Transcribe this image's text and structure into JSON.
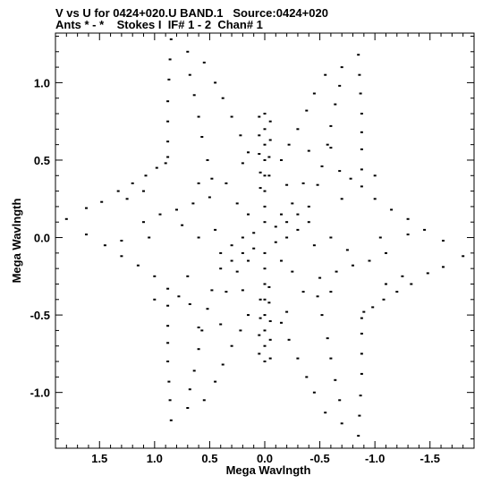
{
  "chart_data": {
    "type": "scatter",
    "title": "V vs U for 0424+020.U BAND.1   Source:0424+020",
    "subtitle": "Ants * - *    Stokes I  IF# 1 - 2  Chan# 1",
    "xlabel": "Mega Wavlngth",
    "ylabel": "Mega Wavlngth",
    "xlim": [
      1.9,
      -1.9
    ],
    "ylim": [
      -1.36,
      1.32
    ],
    "x_reversed": true,
    "x_ticks": [
      1.5,
      1.0,
      0.5,
      0.0,
      -0.5,
      -1.0,
      -1.5
    ],
    "x_tick_labels": [
      "1.5",
      "1.0",
      "0.5",
      "0.0",
      "-0.5",
      "-1.0",
      "-1.5"
    ],
    "y_ticks": [
      1.0,
      0.5,
      0.0,
      -0.5,
      -1.0
    ],
    "y_tick_labels": [
      "1.0",
      "0.5",
      "0.0",
      "-0.5",
      "-1.0"
    ],
    "grid": false,
    "series": [
      {
        "values": [
          [
            1.8,
            0.12
          ],
          [
            1.62,
            0.19
          ],
          [
            1.48,
            0.23
          ],
          [
            1.33,
            0.3
          ],
          [
            1.2,
            0.35
          ],
          [
            1.08,
            0.4
          ],
          [
            0.98,
            0.45
          ],
          [
            0.9,
            0.48
          ],
          [
            -1.8,
            -0.12
          ],
          [
            -1.62,
            -0.19
          ],
          [
            -1.48,
            -0.23
          ],
          [
            -1.33,
            -0.3
          ],
          [
            -1.2,
            -0.35
          ],
          [
            -1.08,
            -0.4
          ],
          [
            -0.98,
            -0.45
          ],
          [
            -0.9,
            -0.48
          ],
          [
            1.62,
            0.02
          ],
          [
            1.45,
            -0.05
          ],
          [
            1.3,
            -0.12
          ],
          [
            1.15,
            -0.18
          ],
          [
            1.0,
            -0.25
          ],
          [
            0.88,
            -0.33
          ],
          [
            0.78,
            -0.38
          ],
          [
            0.68,
            -0.43
          ],
          [
            -1.62,
            -0.02
          ],
          [
            -1.45,
            0.05
          ],
          [
            -1.3,
            0.12
          ],
          [
            -1.15,
            0.18
          ],
          [
            -1.0,
            0.25
          ],
          [
            -0.88,
            0.33
          ],
          [
            -0.78,
            0.38
          ],
          [
            -0.68,
            0.43
          ],
          [
            1.1,
            0.1
          ],
          [
            0.95,
            0.15
          ],
          [
            0.8,
            0.18
          ],
          [
            0.65,
            0.22
          ],
          [
            0.5,
            0.26
          ],
          [
            -1.1,
            -0.1
          ],
          [
            -0.95,
            -0.15
          ],
          [
            -0.8,
            -0.18
          ],
          [
            -0.65,
            -0.22
          ],
          [
            -0.5,
            -0.26
          ],
          [
            0.85,
            1.28
          ],
          [
            0.86,
            1.15
          ],
          [
            0.87,
            1.02
          ],
          [
            0.88,
            0.88
          ],
          [
            0.88,
            0.75
          ],
          [
            0.88,
            0.62
          ],
          [
            0.88,
            0.52
          ],
          [
            -0.85,
            -1.28
          ],
          [
            -0.86,
            -1.15
          ],
          [
            -0.87,
            -1.02
          ],
          [
            -0.88,
            -0.88
          ],
          [
            -0.88,
            -0.75
          ],
          [
            -0.88,
            -0.62
          ],
          [
            -0.88,
            -0.52
          ],
          [
            0.7,
            1.2
          ],
          [
            0.68,
            1.05
          ],
          [
            0.64,
            0.92
          ],
          [
            0.6,
            0.78
          ],
          [
            0.57,
            0.65
          ],
          [
            0.52,
            0.5
          ],
          [
            0.48,
            0.38
          ],
          [
            -0.7,
            -1.2
          ],
          [
            -0.68,
            -1.05
          ],
          [
            -0.64,
            -0.92
          ],
          [
            -0.6,
            -0.78
          ],
          [
            -0.57,
            -0.65
          ],
          [
            -0.52,
            -0.5
          ],
          [
            -0.48,
            -0.38
          ],
          [
            0.55,
            1.13
          ],
          [
            0.45,
            1.0
          ],
          [
            0.38,
            0.9
          ],
          [
            0.3,
            0.78
          ],
          [
            0.22,
            0.66
          ],
          [
            0.15,
            0.55
          ],
          [
            -0.55,
            -1.13
          ],
          [
            -0.45,
            -1.0
          ],
          [
            -0.38,
            -0.9
          ],
          [
            -0.3,
            -0.78
          ],
          [
            -0.22,
            -0.66
          ],
          [
            -0.15,
            -0.55
          ],
          [
            0.85,
            -1.18
          ],
          [
            0.86,
            -1.05
          ],
          [
            0.87,
            -0.93
          ],
          [
            0.88,
            -0.8
          ],
          [
            0.88,
            -0.68
          ],
          [
            0.88,
            -0.57
          ],
          [
            0.88,
            -0.44
          ],
          [
            -0.85,
            1.18
          ],
          [
            -0.86,
            1.05
          ],
          [
            -0.87,
            0.93
          ],
          [
            -0.88,
            0.8
          ],
          [
            -0.88,
            0.68
          ],
          [
            -0.88,
            0.57
          ],
          [
            -0.88,
            0.44
          ],
          [
            0.7,
            -1.1
          ],
          [
            0.68,
            -0.98
          ],
          [
            0.64,
            -0.86
          ],
          [
            0.6,
            -0.72
          ],
          [
            0.57,
            -0.6
          ],
          [
            0.52,
            -0.46
          ],
          [
            0.48,
            -0.34
          ],
          [
            -0.7,
            1.1
          ],
          [
            -0.68,
            0.98
          ],
          [
            -0.64,
            0.86
          ],
          [
            -0.6,
            0.72
          ],
          [
            -0.57,
            0.6
          ],
          [
            -0.52,
            0.46
          ],
          [
            -0.48,
            0.34
          ],
          [
            0.55,
            -1.05
          ],
          [
            0.45,
            -0.93
          ],
          [
            0.38,
            -0.82
          ],
          [
            0.3,
            -0.7
          ],
          [
            0.22,
            -0.6
          ],
          [
            0.15,
            -0.5
          ],
          [
            -0.55,
            1.05
          ],
          [
            -0.45,
            0.93
          ],
          [
            -0.38,
            0.82
          ],
          [
            -0.3,
            0.7
          ],
          [
            -0.22,
            0.6
          ],
          [
            -0.15,
            0.5
          ],
          [
            0.0,
            0.8
          ],
          [
            0.0,
            0.7
          ],
          [
            0.0,
            0.6
          ],
          [
            0.0,
            0.5
          ],
          [
            0.0,
            0.4
          ],
          [
            0.0,
            0.3
          ],
          [
            0.0,
            0.2
          ],
          [
            0.0,
            0.1
          ],
          [
            0.0,
            -0.8
          ],
          [
            0.0,
            -0.7
          ],
          [
            0.0,
            -0.6
          ],
          [
            0.0,
            -0.5
          ],
          [
            0.0,
            -0.4
          ],
          [
            0.0,
            -0.3
          ],
          [
            0.0,
            -0.2
          ],
          [
            0.0,
            -0.1
          ],
          [
            0.05,
            0.78
          ],
          [
            0.05,
            0.66
          ],
          [
            0.05,
            0.54
          ],
          [
            0.04,
            0.42
          ],
          [
            0.04,
            0.32
          ],
          [
            -0.05,
            -0.78
          ],
          [
            -0.05,
            -0.66
          ],
          [
            -0.05,
            -0.54
          ],
          [
            -0.04,
            -0.42
          ],
          [
            -0.04,
            -0.32
          ],
          [
            -0.05,
            0.75
          ],
          [
            -0.05,
            0.63
          ],
          [
            -0.04,
            0.52
          ],
          [
            -0.04,
            0.4
          ],
          [
            0.05,
            -0.75
          ],
          [
            0.05,
            -0.63
          ],
          [
            0.04,
            -0.52
          ],
          [
            0.04,
            -0.4
          ],
          [
            0.4,
            -0.1
          ],
          [
            0.3,
            -0.05
          ],
          [
            0.2,
            0.0
          ],
          [
            0.1,
            0.03
          ],
          [
            -0.1,
            0.07
          ],
          [
            -0.2,
            0.1
          ],
          [
            -0.3,
            0.15
          ],
          [
            -0.4,
            0.2
          ],
          [
            -0.4,
            0.1
          ],
          [
            -0.3,
            0.05
          ],
          [
            -0.2,
            0.0
          ],
          [
            -0.1,
            -0.03
          ],
          [
            0.1,
            -0.07
          ],
          [
            0.2,
            -0.1
          ],
          [
            0.3,
            -0.15
          ],
          [
            0.4,
            -0.2
          ],
          [
            0.25,
            0.22
          ],
          [
            0.15,
            0.15
          ],
          [
            -0.25,
            -0.22
          ],
          [
            -0.15,
            -0.15
          ],
          [
            0.25,
            -0.22
          ],
          [
            0.15,
            -0.15
          ],
          [
            -0.25,
            0.22
          ],
          [
            -0.15,
            0.15
          ],
          [
            0.6,
            0.0
          ],
          [
            0.45,
            0.05
          ],
          [
            -0.6,
            0.0
          ],
          [
            -0.45,
            -0.05
          ],
          [
            0.35,
            0.35
          ],
          [
            -0.35,
            -0.35
          ],
          [
            0.35,
            -0.35
          ],
          [
            -0.35,
            0.35
          ],
          [
            1.05,
            0.0
          ],
          [
            -1.05,
            0.0
          ],
          [
            0.75,
            0.08
          ],
          [
            -0.75,
            -0.08
          ],
          [
            1.0,
            -0.4
          ],
          [
            -1.0,
            0.4
          ],
          [
            1.3,
            -0.02
          ],
          [
            -1.3,
            0.02
          ],
          [
            -1.1,
            -0.3
          ],
          [
            1.1,
            0.3
          ],
          [
            -1.25,
            -0.25
          ],
          [
            1.25,
            0.25
          ],
          [
            -0.6,
            0.58
          ],
          [
            0.6,
            -0.58
          ],
          [
            -0.4,
            0.56
          ],
          [
            0.4,
            -0.56
          ],
          [
            -0.2,
            0.34
          ],
          [
            0.2,
            -0.34
          ],
          [
            -0.7,
            0.25
          ],
          [
            0.7,
            -0.25
          ],
          [
            0.2,
            0.48
          ],
          [
            -0.2,
            -0.48
          ],
          [
            0.6,
            0.35
          ],
          [
            -0.6,
            -0.35
          ]
        ]
      }
    ]
  }
}
